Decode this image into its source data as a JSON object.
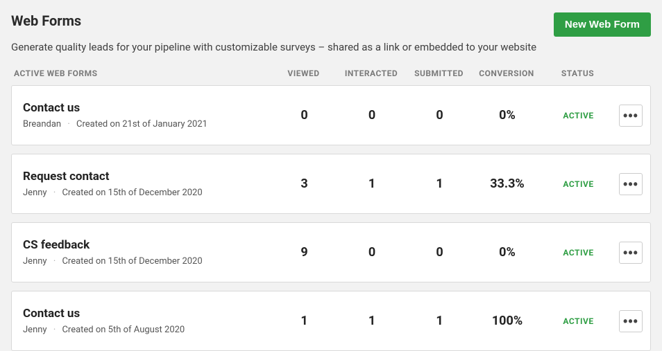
{
  "header": {
    "title": "Web Forms",
    "subtitle": "Generate quality leads for your pipeline with customizable surveys – shared as a link or embedded to your website",
    "new_button": "New Web Form"
  },
  "columns": {
    "name": "ACTIVE WEB FORMS",
    "viewed": "VIEWED",
    "interacted": "INTERACTED",
    "submitted": "SUBMITTED",
    "conversion": "CONVERSION",
    "status": "STATUS"
  },
  "rows": [
    {
      "title": "Contact us",
      "author": "Breandan",
      "created": "Created on 21st of January 2021",
      "viewed": "0",
      "interacted": "0",
      "submitted": "0",
      "conversion": "0%",
      "status": "ACTIVE"
    },
    {
      "title": "Request contact",
      "author": "Jenny",
      "created": "Created on 15th of December 2020",
      "viewed": "3",
      "interacted": "1",
      "submitted": "1",
      "conversion": "33.3%",
      "status": "ACTIVE"
    },
    {
      "title": "CS feedback",
      "author": "Jenny",
      "created": "Created on 15th of December 2020",
      "viewed": "9",
      "interacted": "0",
      "submitted": "0",
      "conversion": "0%",
      "status": "ACTIVE"
    },
    {
      "title": "Contact us",
      "author": "Jenny",
      "created": "Created on 5th of August 2020",
      "viewed": "1",
      "interacted": "1",
      "submitted": "1",
      "conversion": "100%",
      "status": "ACTIVE"
    }
  ],
  "colors": {
    "page_bg": "#f2f2f2",
    "card_bg": "#ffffff",
    "card_border": "#d9d9d9",
    "primary_button_bg": "#2f9e44",
    "status_active": "#2f9e44",
    "text_primary": "#222222",
    "text_secondary": "#555555",
    "text_muted": "#7a7a7a"
  }
}
